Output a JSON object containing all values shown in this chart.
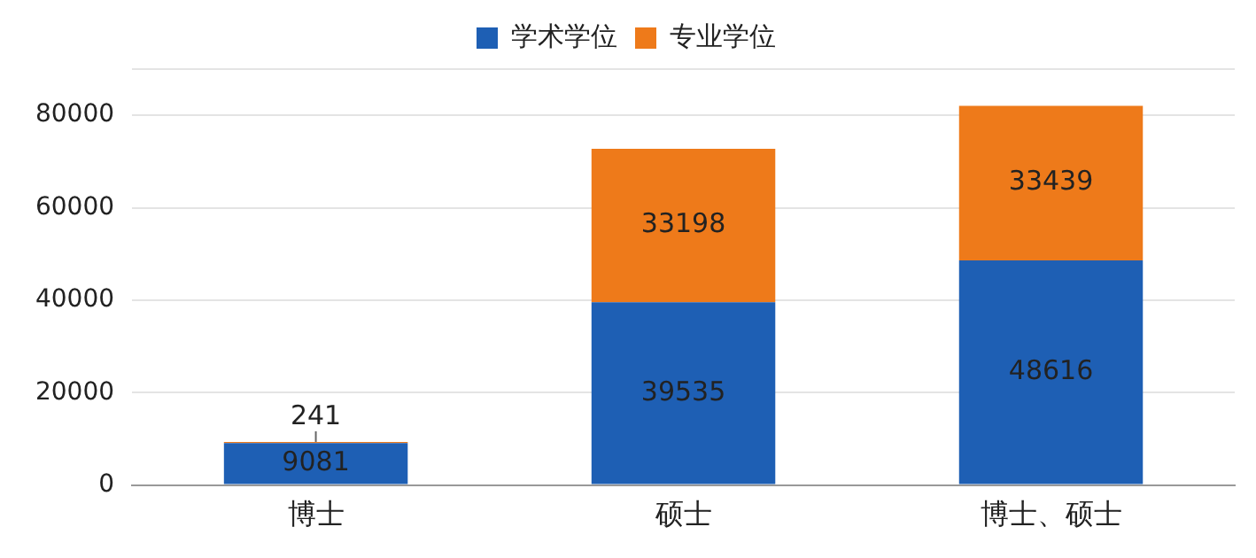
{
  "chart_data": {
    "type": "bar",
    "stacked": true,
    "categories": [
      "博士",
      "硕士",
      "博士、硕士"
    ],
    "series": [
      {
        "name": "学术学位",
        "color": "#1e5fb4",
        "values": [
          9081,
          39535,
          48616
        ]
      },
      {
        "name": "专业学位",
        "color": "#ee7a1a",
        "values": [
          241,
          33198,
          33439
        ]
      }
    ],
    "ylim": [
      0,
      90000
    ],
    "yticks": [
      0,
      20000,
      40000,
      60000,
      80000,
      {
        "value": 90000,
        "label": null
      }
    ],
    "grid": "y",
    "legend": "top",
    "data_labels": true
  }
}
